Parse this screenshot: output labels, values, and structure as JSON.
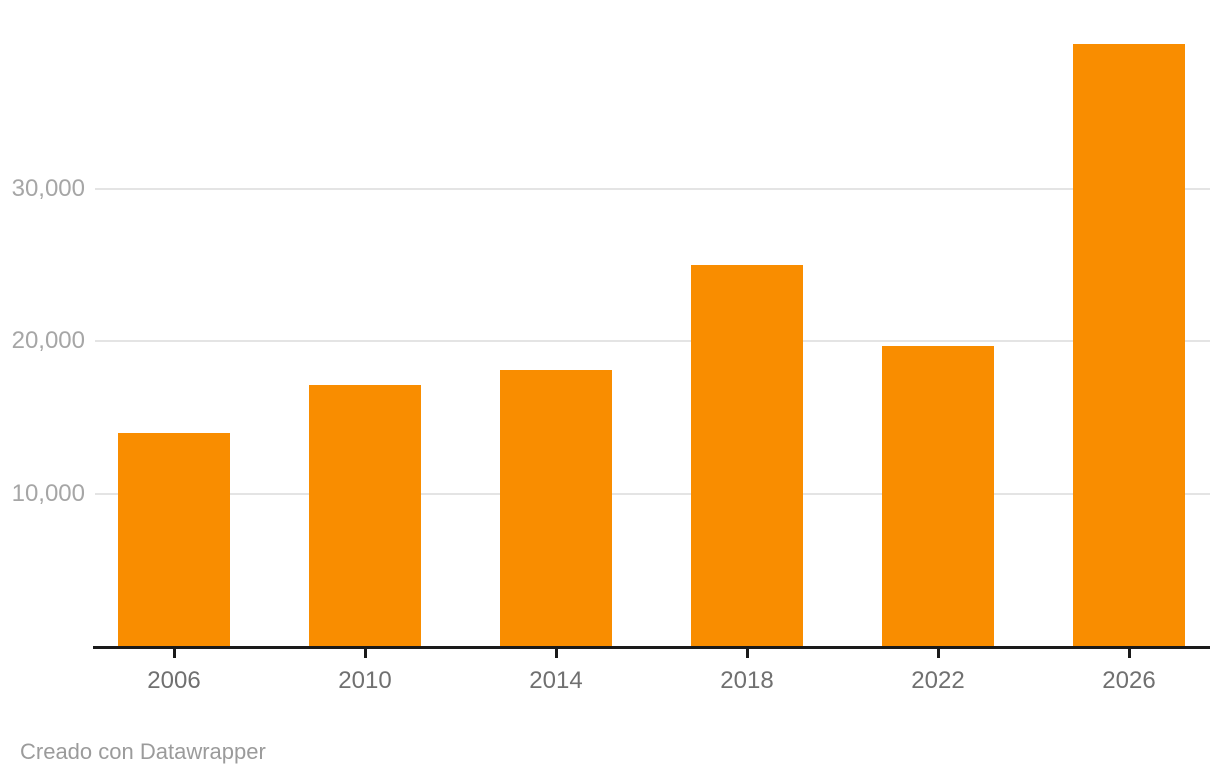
{
  "chart_data": {
    "type": "bar",
    "title": "",
    "xlabel": "",
    "ylabel": "",
    "categories": [
      "2006",
      "2010",
      "2014",
      "2018",
      "2022",
      "2026"
    ],
    "values": [
      14000,
      17100,
      18100,
      25000,
      19700,
      39500
    ],
    "ylim": [
      0,
      39600
    ],
    "yticks": [
      {
        "value": 10000,
        "label": "10,000"
      },
      {
        "value": 20000,
        "label": "20,000"
      },
      {
        "value": 30000,
        "label": "30,000"
      }
    ],
    "grid": true,
    "legend": "none",
    "bar_color": "#f98d00"
  },
  "colors": {
    "bar": "#f98d00",
    "gridline": "#e4e4e4",
    "axis": "#1a1a1a",
    "y_label": "#a6a6a6",
    "x_label": "#707070",
    "footer": "#9b9b9b",
    "background": "#ffffff"
  },
  "footer": {
    "text": "Creado con Datawrapper"
  }
}
